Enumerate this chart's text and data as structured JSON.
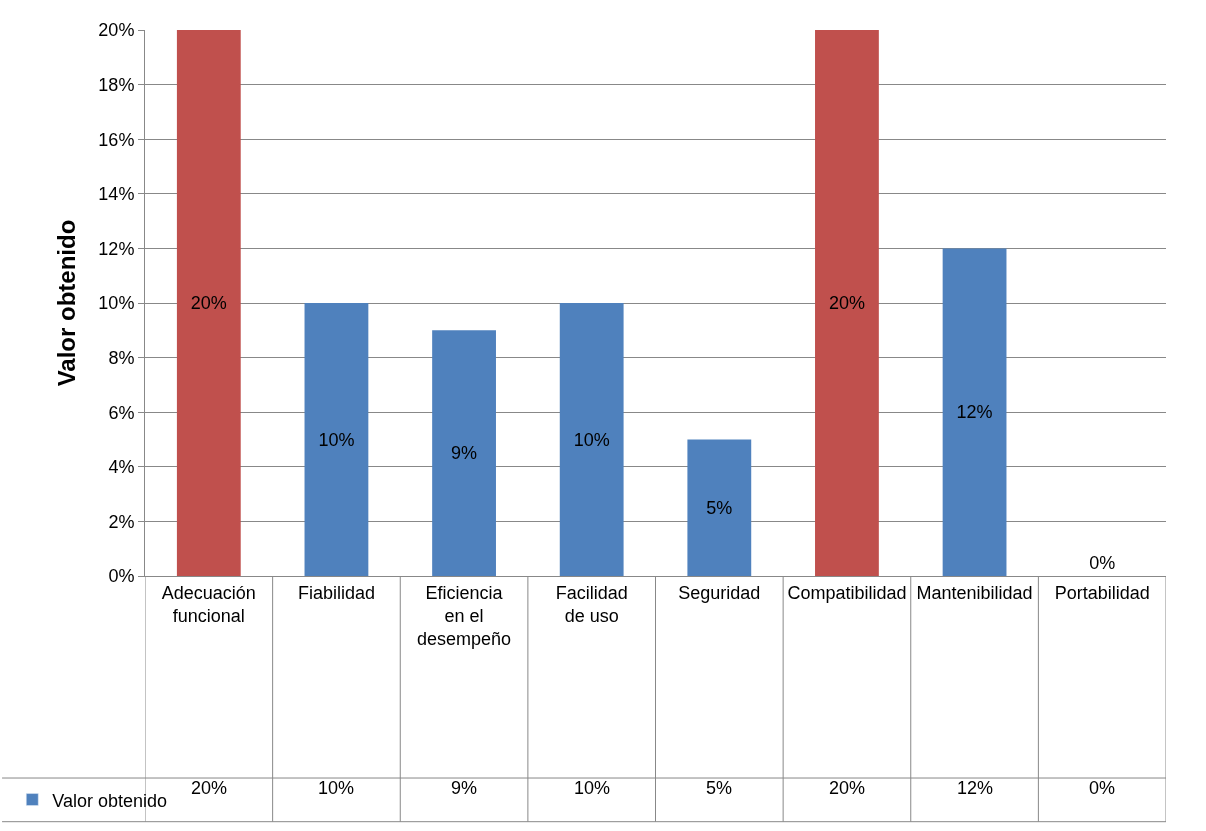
{
  "chart_data": {
    "type": "bar",
    "ylabel": "Valor obtenido",
    "categories": [
      "Adecuación funcional",
      "Fiabilidad",
      "Eficiencia en el desempeño",
      "Facilidad de uso",
      "Seguridad",
      "Compatibilidad",
      "Mantenibilidad",
      "Portabilidad"
    ],
    "series": [
      {
        "name": "Valor obtenido",
        "color": "#4f81bd",
        "colors": [
          "#c0504d",
          "#4f81bd",
          "#4f81bd",
          "#4f81bd",
          "#4f81bd",
          "#c0504d",
          "#4f81bd",
          "#4f81bd"
        ],
        "values": [
          20,
          10,
          9,
          10,
          5,
          20,
          12,
          0
        ],
        "value_labels": [
          "20%",
          "10%",
          "9%",
          "10%",
          "5%",
          "20%",
          "12%",
          "0%"
        ]
      }
    ],
    "ylim": [
      0,
      20
    ],
    "yticks": [
      {
        "value": 0,
        "label": "0%"
      },
      {
        "value": 2,
        "label": "2%"
      },
      {
        "value": 4,
        "label": "4%"
      },
      {
        "value": 6,
        "label": "6%"
      },
      {
        "value": 8,
        "label": "8%"
      },
      {
        "value": 10,
        "label": "10%"
      },
      {
        "value": 12,
        "label": "12%"
      },
      {
        "value": 14,
        "label": "14%"
      },
      {
        "value": 16,
        "label": "16%"
      },
      {
        "value": 18,
        "label": "18%"
      },
      {
        "value": 20,
        "label": "20%"
      }
    ],
    "grid": "y",
    "legend": "bottom left"
  }
}
